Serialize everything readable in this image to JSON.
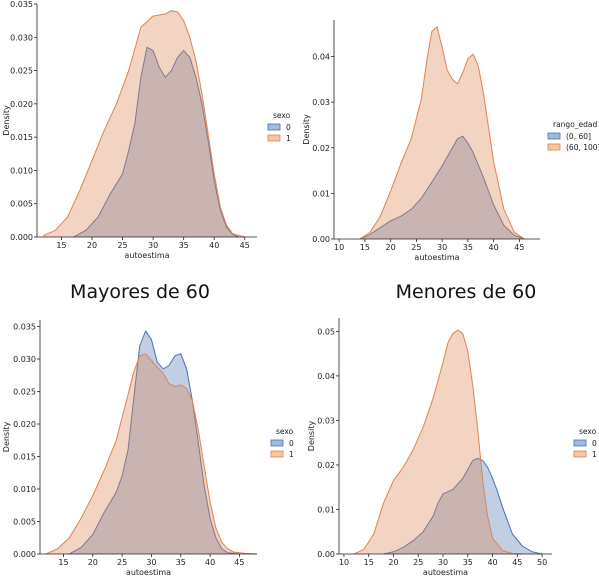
{
  "headings": {
    "left": "Mayores de 60",
    "right": "Menores de 60"
  },
  "colors": {
    "blue": "#4c72b0",
    "orange": "#dd8452"
  },
  "chart_data": [
    {
      "type": "area",
      "xlabel": "autoestima",
      "ylabel": "Density",
      "xlim": [
        11,
        47
      ],
      "ylim": [
        0,
        0.035
      ],
      "xticks": [
        "15",
        "20",
        "25",
        "30",
        "35",
        "40",
        "45"
      ],
      "yticks": [
        "0.000",
        "0.005",
        "0.010",
        "0.015",
        "0.020",
        "0.025",
        "0.030",
        "0.035"
      ],
      "legend": {
        "title": "sexo",
        "position": "center-right"
      },
      "series": [
        {
          "name": "0",
          "color": "blue",
          "x": [
            17,
            19,
            21,
            23,
            25,
            26,
            27,
            28,
            29,
            30,
            31,
            32,
            33,
            34,
            35,
            36,
            37,
            38,
            39,
            40,
            41,
            42,
            43,
            44
          ],
          "y": [
            0,
            0.001,
            0.003,
            0.0065,
            0.0095,
            0.013,
            0.017,
            0.024,
            0.0285,
            0.028,
            0.0255,
            0.024,
            0.025,
            0.027,
            0.028,
            0.027,
            0.024,
            0.02,
            0.0145,
            0.0085,
            0.004,
            0.0015,
            0.0004,
            0
          ]
        },
        {
          "name": "1",
          "color": "orange",
          "x": [
            12,
            14,
            16,
            18,
            20,
            22,
            24,
            26,
            28,
            30,
            32,
            33,
            34,
            35,
            36,
            37,
            38,
            39,
            40,
            41,
            42,
            43,
            45
          ],
          "y": [
            0.0002,
            0.001,
            0.003,
            0.007,
            0.0115,
            0.016,
            0.02,
            0.025,
            0.0315,
            0.0332,
            0.0335,
            0.034,
            0.0338,
            0.0325,
            0.03,
            0.0265,
            0.0215,
            0.0155,
            0.0095,
            0.0045,
            0.0018,
            0.0005,
            0
          ]
        }
      ]
    },
    {
      "type": "area",
      "xlabel": "autoestima",
      "ylabel": "Density",
      "xlim": [
        9,
        49
      ],
      "ylim": [
        0,
        0.048
      ],
      "xticks": [
        "10",
        "15",
        "20",
        "25",
        "30",
        "35",
        "40",
        "45"
      ],
      "yticks": [
        "0.00",
        "0.01",
        "0.02",
        "0.03",
        "0.04"
      ],
      "legend": {
        "title": "rango_edad",
        "position": "center-right"
      },
      "series": [
        {
          "name": "(0, 60]",
          "color": "blue",
          "x": [
            14,
            16,
            18,
            20,
            22,
            24,
            26,
            28,
            30,
            32,
            33,
            34,
            35,
            36,
            38,
            40,
            42,
            44,
            46
          ],
          "y": [
            0,
            0.001,
            0.0025,
            0.004,
            0.005,
            0.0065,
            0.009,
            0.0125,
            0.016,
            0.02,
            0.022,
            0.0225,
            0.021,
            0.019,
            0.0135,
            0.0075,
            0.003,
            0.0008,
            0
          ]
        },
        {
          "name": "(60, 100]",
          "color": "orange",
          "x": [
            14,
            16,
            18,
            20,
            22,
            24,
            26,
            27,
            28,
            29,
            30,
            31,
            32,
            33,
            34,
            35,
            36,
            37,
            38,
            40,
            42,
            44,
            46
          ],
          "y": [
            0,
            0.0015,
            0.005,
            0.0105,
            0.0165,
            0.022,
            0.031,
            0.039,
            0.0455,
            0.0465,
            0.042,
            0.037,
            0.035,
            0.034,
            0.0365,
            0.0395,
            0.0405,
            0.038,
            0.032,
            0.017,
            0.0065,
            0.0015,
            0
          ]
        }
      ]
    },
    {
      "type": "area",
      "xlabel": "autoestima",
      "ylabel": "Density",
      "xlim": [
        11,
        48
      ],
      "ylim": [
        0,
        0.036
      ],
      "xticks": [
        "15",
        "20",
        "25",
        "30",
        "35",
        "40",
        "45"
      ],
      "yticks": [
        "0.000",
        "0.005",
        "0.010",
        "0.015",
        "0.020",
        "0.025",
        "0.030",
        "0.035"
      ],
      "legend": {
        "title": "sexo",
        "position": "center-right"
      },
      "series": [
        {
          "name": "0",
          "color": "blue",
          "x": [
            16,
            18,
            20,
            22,
            24,
            25,
            26,
            27,
            28,
            29,
            30,
            31,
            32,
            33,
            34,
            35,
            36,
            37,
            38,
            39,
            40,
            41,
            42,
            43,
            45
          ],
          "y": [
            0,
            0.001,
            0.003,
            0.0065,
            0.0095,
            0.012,
            0.016,
            0.024,
            0.032,
            0.0343,
            0.033,
            0.0295,
            0.0285,
            0.029,
            0.0305,
            0.0308,
            0.0285,
            0.0235,
            0.017,
            0.0105,
            0.0055,
            0.0025,
            0.0008,
            0.0002,
            0
          ]
        },
        {
          "name": "1",
          "color": "orange",
          "x": [
            12,
            14,
            16,
            18,
            20,
            22,
            24,
            26,
            27,
            28,
            29,
            30,
            31,
            32,
            33,
            34,
            35,
            36,
            37,
            38,
            39,
            40,
            41,
            42,
            43,
            44,
            46,
            48
          ],
          "y": [
            0,
            0.0008,
            0.0025,
            0.0055,
            0.009,
            0.013,
            0.0175,
            0.0245,
            0.028,
            0.0305,
            0.0308,
            0.0298,
            0.0287,
            0.0278,
            0.0262,
            0.0258,
            0.026,
            0.0255,
            0.0235,
            0.019,
            0.0135,
            0.008,
            0.004,
            0.0018,
            0.0008,
            0.0003,
            0.0001,
            0
          ]
        }
      ]
    },
    {
      "type": "area",
      "xlabel": "autoestima",
      "ylabel": "Density",
      "xlim": [
        9,
        52
      ],
      "ylim": [
        0,
        0.053
      ],
      "xticks": [
        "10",
        "15",
        "20",
        "25",
        "30",
        "35",
        "40",
        "45",
        "50"
      ],
      "yticks": [
        "0.00",
        "0.01",
        "0.02",
        "0.03",
        "0.04",
        "0.05"
      ],
      "legend": {
        "title": "sexo",
        "position": "center-right"
      },
      "series": [
        {
          "name": "0",
          "color": "blue",
          "x": [
            18,
            20,
            22,
            24,
            26,
            28,
            29,
            30,
            31,
            32,
            34,
            35,
            36,
            37,
            38,
            39,
            40,
            41,
            42,
            43,
            44,
            46,
            48,
            50
          ],
          "y": [
            0,
            0.0005,
            0.0015,
            0.003,
            0.005,
            0.0085,
            0.0115,
            0.0135,
            0.014,
            0.0145,
            0.017,
            0.019,
            0.021,
            0.0215,
            0.021,
            0.0195,
            0.017,
            0.014,
            0.0105,
            0.0075,
            0.0045,
            0.0018,
            0.0005,
            0
          ]
        },
        {
          "name": "1",
          "color": "orange",
          "x": [
            12,
            14,
            16,
            18,
            20,
            22,
            24,
            26,
            28,
            30,
            31,
            32,
            33,
            34,
            35,
            36,
            37,
            38,
            39,
            40,
            42,
            44,
            46
          ],
          "y": [
            0,
            0.001,
            0.0045,
            0.0115,
            0.0165,
            0.0195,
            0.0235,
            0.0285,
            0.035,
            0.043,
            0.0475,
            0.0495,
            0.0503,
            0.0495,
            0.0455,
            0.038,
            0.028,
            0.0165,
            0.0085,
            0.0035,
            0.0008,
            0.0001,
            0
          ]
        }
      ]
    }
  ]
}
